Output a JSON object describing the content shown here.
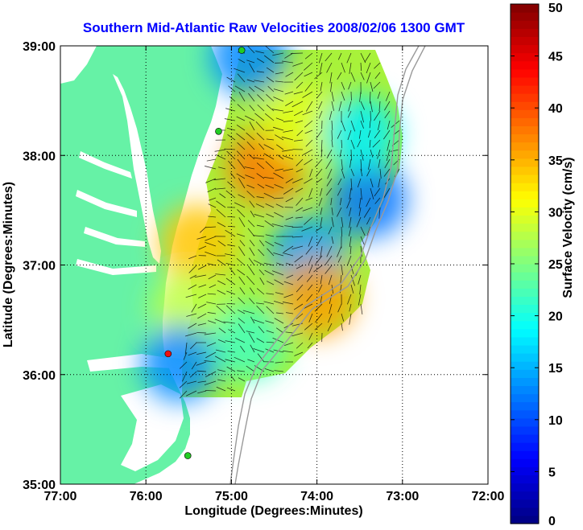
{
  "chart_data": {
    "type": "heatmap",
    "title": "Southern Mid-Atlantic Raw Velocities 2008/02/06 1300 GMT",
    "xlabel": "Longitude (Degrees:Minutes)",
    "ylabel": "Latitude (Degrees:Minutes)",
    "x_ticks": [
      "77:00",
      "76:00",
      "75:00",
      "74:00",
      "73:00",
      "72:00"
    ],
    "x_tick_values": [
      -77,
      -76,
      -75,
      -74,
      -73,
      -72
    ],
    "y_ticks": [
      "39:00",
      "38:00",
      "37:00",
      "36:00",
      "35:00"
    ],
    "y_tick_values": [
      39,
      38,
      37,
      36,
      35
    ],
    "xlim": [
      -77,
      -72
    ],
    "ylim": [
      35,
      39
    ],
    "grid": true,
    "colorbar": {
      "label": "Surface Velocity (cm/s)",
      "range": [
        0,
        50
      ],
      "ticks": [
        "0",
        "5",
        "10",
        "15",
        "20",
        "25",
        "30",
        "35",
        "40",
        "45",
        "50"
      ],
      "tick_values": [
        0,
        5,
        10,
        15,
        20,
        25,
        30,
        35,
        40,
        45,
        50
      ],
      "colormap": "jet"
    },
    "land_color": "#66f2a6",
    "velocity_regions": [
      {
        "lon": -74.6,
        "lat": 37.9,
        "speed": 38
      },
      {
        "lon": -74.2,
        "lat": 38.3,
        "speed": 30
      },
      {
        "lon": -73.4,
        "lat": 37.6,
        "speed": 12
      },
      {
        "lon": -74.1,
        "lat": 37.1,
        "speed": 14
      },
      {
        "lon": -74.0,
        "lat": 36.7,
        "speed": 36
      },
      {
        "lon": -75.4,
        "lat": 37.2,
        "speed": 34
      },
      {
        "lon": -75.5,
        "lat": 36.6,
        "speed": 28
      },
      {
        "lon": -75.6,
        "lat": 36.1,
        "speed": 13
      },
      {
        "lon": -74.8,
        "lat": 36.3,
        "speed": 22
      },
      {
        "lon": -74.8,
        "lat": 38.9,
        "speed": 13
      },
      {
        "lon": -73.5,
        "lat": 38.2,
        "speed": 18
      }
    ],
    "stations": [
      {
        "lon": -74.88,
        "lat": 38.96,
        "color": "#22cc22"
      },
      {
        "lon": -75.15,
        "lat": 38.22,
        "color": "#22cc22"
      },
      {
        "lon": -75.74,
        "lat": 36.19,
        "color": "#ee1111"
      },
      {
        "lon": -75.51,
        "lat": 35.26,
        "color": "#22cc22"
      }
    ]
  }
}
